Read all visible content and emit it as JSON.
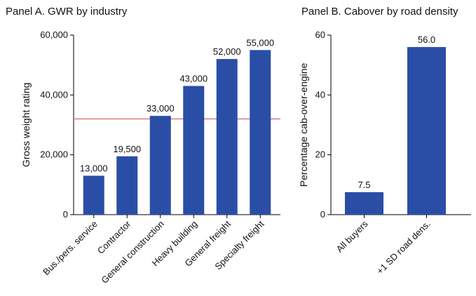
{
  "panels": {
    "a_title": "Panel A. GWR by industry",
    "b_title": "Panel B. Cabover by road density"
  },
  "colors": {
    "bar": "#2a4ea6",
    "refline": "#e07a7a",
    "axis": "#000000"
  },
  "chart_data": [
    {
      "type": "bar",
      "title": "Panel A. GWR by industry",
      "xlabel": "",
      "ylabel": "Gross weight rating",
      "ylim": [
        0,
        60000
      ],
      "yticks": [
        0,
        20000,
        40000,
        60000
      ],
      "ytick_labels": [
        "0",
        "20,000",
        "40,000",
        "60,000"
      ],
      "categories": [
        "Bus./pers. service",
        "Contractor",
        "General construction",
        "Heavy building",
        "General freight",
        "Specialty freight"
      ],
      "values": [
        13000,
        19500,
        33000,
        43000,
        52000,
        55000
      ],
      "value_labels": [
        "13,000",
        "19,500",
        "33,000",
        "43,000",
        "52,000",
        "55,000"
      ],
      "reference_line": 32000,
      "grid": false
    },
    {
      "type": "bar",
      "title": "Panel B. Cabover by road density",
      "xlabel": "",
      "ylabel": "Percentage cab-over-engine",
      "ylim": [
        0,
        60
      ],
      "yticks": [
        0,
        20,
        40,
        60
      ],
      "ytick_labels": [
        "0",
        "20",
        "40",
        "60"
      ],
      "categories": [
        "All buyers",
        "+1 SD road dens."
      ],
      "values": [
        7.5,
        56.0
      ],
      "value_labels": [
        "7.5",
        "56.0"
      ],
      "grid": false
    }
  ]
}
